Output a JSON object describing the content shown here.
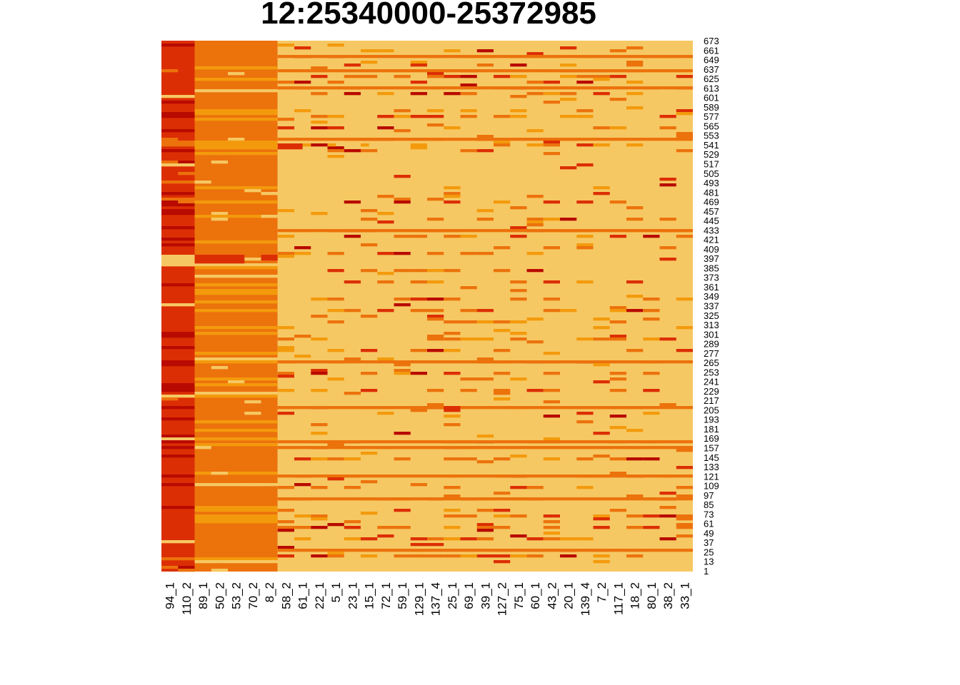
{
  "chart_data": {
    "type": "heatmap",
    "title": "12:25340000-25372985",
    "color_scale": [
      "#f6c863",
      "#f39a0c",
      "#ec720c",
      "#dc2e04",
      "#b80a00"
    ],
    "x_tick_labels": [
      "94_1",
      "110_2",
      "89_1",
      "50_2",
      "53_2",
      "70_2",
      "8_2",
      "58_2",
      "61_1",
      "22_1",
      "5_1",
      "23_1",
      "15_1",
      "72_1",
      "59_1",
      "129_1",
      "137_4",
      "25_1",
      "69_1",
      "39_1",
      "127_2",
      "75_1",
      "60_1",
      "43_2",
      "20_1",
      "139_4",
      "7_2",
      "117_1",
      "18_2",
      "80_1",
      "38_2",
      "33_1"
    ],
    "y_range": [
      1,
      673
    ],
    "y_tick_labels": [
      "673",
      "661",
      "649",
      "637",
      "625",
      "613",
      "601",
      "589",
      "577",
      "565",
      "553",
      "541",
      "529",
      "517",
      "505",
      "493",
      "481",
      "469",
      "457",
      "445",
      "433",
      "421",
      "409",
      "397",
      "385",
      "373",
      "361",
      "349",
      "337",
      "325",
      "313",
      "301",
      "289",
      "277",
      "265",
      "253",
      "241",
      "229",
      "217",
      "205",
      "193",
      "181",
      "169",
      "157",
      "145",
      "133",
      "121",
      "109",
      "97",
      "85",
      "73",
      "61",
      "49",
      "37",
      "25",
      "13",
      "1"
    ],
    "column_groups": [
      {
        "columns": "94_1–110_2",
        "dominant_level": 3
      },
      {
        "columns": "89_1–8_2",
        "dominant_level": 2
      },
      {
        "columns": "58_2–33_1",
        "dominant_level": 0
      }
    ]
  }
}
